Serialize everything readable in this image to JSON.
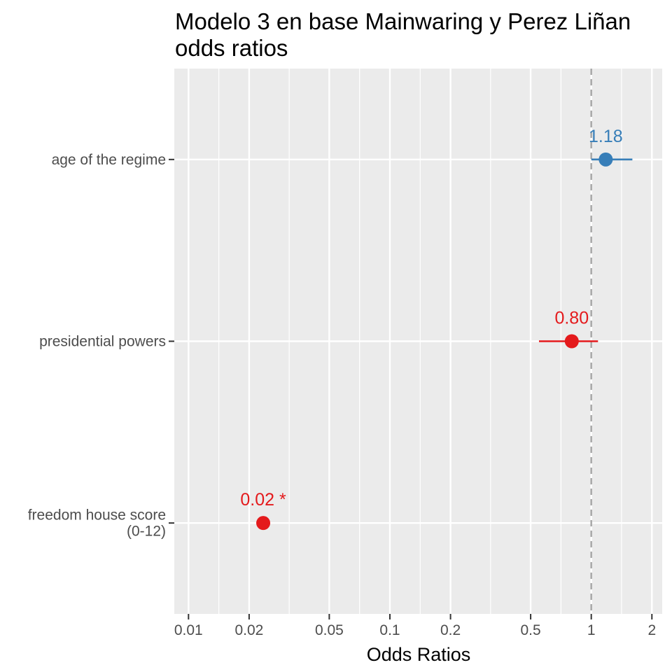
{
  "chart_data": {
    "type": "scatter",
    "subtype": "forest-plot",
    "title_line1": "Modelo 3 en base Mainwaring y Perez Liñan",
    "title_line2": "odds ratios",
    "xlabel": "Odds Ratios",
    "x_scale": "log10",
    "xlim": [
      0.0085,
      2.25
    ],
    "x_ticks": [
      {
        "value": 0.01,
        "label": "0.01"
      },
      {
        "value": 0.02,
        "label": "0.02"
      },
      {
        "value": 0.05,
        "label": "0.05"
      },
      {
        "value": 0.1,
        "label": "0.1"
      },
      {
        "value": 0.2,
        "label": "0.2"
      },
      {
        "value": 0.5,
        "label": "0.5"
      },
      {
        "value": 1,
        "label": "1"
      },
      {
        "value": 2,
        "label": "2"
      }
    ],
    "reference_line": 1,
    "grid": true,
    "colors": {
      "positive": "#377eb8",
      "negative": "#e41a1c",
      "panel": "#ebebeb",
      "grid": "#ffffff",
      "reference": "#a6a6a6"
    },
    "terms": [
      {
        "label_lines": [
          "age of the regime"
        ],
        "estimate": 1.18,
        "ci": [
          1.0,
          1.6
        ],
        "display": "1.18",
        "color": "#377eb8"
      },
      {
        "label_lines": [
          "presidential powers"
        ],
        "estimate": 0.8,
        "ci": [
          0.55,
          1.08
        ],
        "display": "0.80",
        "color": "#e41a1c"
      },
      {
        "label_lines": [
          "freedom house score",
          "(0-12)"
        ],
        "estimate": 0.0235,
        "ci": [
          0.0235,
          0.0235
        ],
        "display": "0.02 *",
        "color": "#e41a1c"
      }
    ]
  }
}
